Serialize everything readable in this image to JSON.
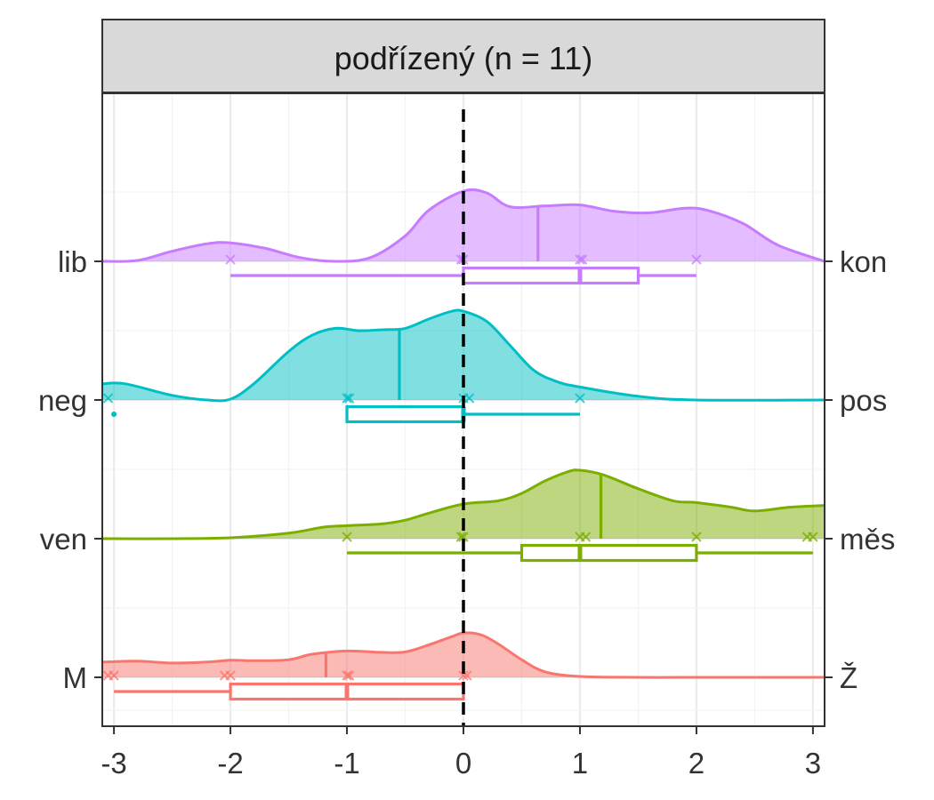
{
  "chart_data": {
    "type": "ridgeline",
    "panel_title": "podřízený (n = 11)",
    "xlim": [
      -3.1,
      3.1
    ],
    "x_ticks": [
      -3,
      -2,
      -1,
      0,
      1,
      2,
      3
    ],
    "x_tick_labels": [
      "-3",
      "-2",
      "-1",
      "0",
      "1",
      "2",
      "3"
    ],
    "reference_line_x": 0,
    "grid": true,
    "series": [
      {
        "left_label": "M",
        "right_label": "Ž",
        "color": "#F8766D",
        "density_x": [
          -3.1,
          -2.8,
          -2.5,
          -2.2,
          -2.0,
          -1.8,
          -1.5,
          -1.3,
          -1.0,
          -0.7,
          -0.5,
          -0.3,
          -0.1,
          0.0,
          0.15,
          0.3,
          0.5,
          0.7,
          1.0,
          1.5,
          2.0,
          2.5,
          3.1
        ],
        "density_y": [
          0.33,
          0.35,
          0.31,
          0.33,
          0.37,
          0.36,
          0.38,
          0.5,
          0.57,
          0.54,
          0.55,
          0.7,
          0.88,
          0.96,
          0.92,
          0.72,
          0.38,
          0.12,
          0.02,
          0.0,
          0.0,
          0.0,
          0.0
        ],
        "mean": -1.18,
        "points": [
          -3.0,
          -3.05,
          -2.0,
          -2.05,
          -1.0,
          -0.98,
          0.0,
          0.03
        ],
        "box": {
          "whisker_low": -3.0,
          "q1": -2.0,
          "median": -1.0,
          "q3": 0.0,
          "whisker_high": 0.0
        },
        "outliers": []
      },
      {
        "left_label": "ven",
        "right_label": "měs",
        "color": "#7CAE00",
        "density_x": [
          -3.1,
          -2.5,
          -2.0,
          -1.5,
          -1.2,
          -1.0,
          -0.7,
          -0.5,
          -0.3,
          0.0,
          0.3,
          0.5,
          0.7,
          0.9,
          1.0,
          1.2,
          1.5,
          1.8,
          2.0,
          2.3,
          2.5,
          2.8,
          3.1
        ],
        "density_y": [
          0.0,
          0.0,
          0.02,
          0.12,
          0.25,
          0.28,
          0.32,
          0.4,
          0.55,
          0.75,
          0.82,
          0.98,
          1.25,
          1.45,
          1.48,
          1.38,
          1.08,
          0.82,
          0.78,
          0.68,
          0.6,
          0.68,
          0.72
        ],
        "mean": 1.18,
        "points": [
          -1.0,
          0.0,
          -0.02,
          1.0,
          1.05,
          2.0,
          3.0,
          2.95
        ],
        "box": {
          "whisker_low": -1.0,
          "q1": 0.5,
          "median": 1.0,
          "q3": 2.0,
          "whisker_high": 3.0
        },
        "outliers": []
      },
      {
        "left_label": "neg",
        "right_label": "pos",
        "color": "#00BFC4",
        "density_x": [
          -3.1,
          -2.9,
          -2.5,
          -2.2,
          -2.0,
          -1.8,
          -1.5,
          -1.3,
          -1.1,
          -0.9,
          -0.7,
          -0.5,
          -0.3,
          -0.1,
          0.0,
          0.2,
          0.4,
          0.6,
          0.8,
          1.0,
          1.5,
          2.0,
          3.1
        ],
        "density_y": [
          0.35,
          0.35,
          0.1,
          0.0,
          0.02,
          0.35,
          1.05,
          1.4,
          1.55,
          1.5,
          1.52,
          1.55,
          1.75,
          1.92,
          1.92,
          1.7,
          1.18,
          0.65,
          0.4,
          0.28,
          0.08,
          0.0,
          0.0
        ],
        "mean": -0.55,
        "points": [
          -3.05,
          -1.0,
          -0.98,
          0.0,
          0.05,
          1.0
        ],
        "box": {
          "whisker_low": -1.0,
          "q1": -1.0,
          "median": 0.0,
          "q3": 0.0,
          "whisker_high": 1.0
        },
        "outliers": [
          -3.0
        ]
      },
      {
        "left_label": "lib",
        "right_label": "kon",
        "color": "#C77CFF",
        "density_x": [
          -3.1,
          -2.8,
          -2.5,
          -2.2,
          -2.0,
          -1.7,
          -1.4,
          -1.1,
          -0.8,
          -0.5,
          -0.3,
          0.0,
          0.2,
          0.4,
          0.7,
          1.0,
          1.3,
          1.6,
          1.9,
          2.1,
          2.4,
          2.7,
          3.1
        ],
        "density_y": [
          0.0,
          0.02,
          0.22,
          0.38,
          0.4,
          0.28,
          0.08,
          0.0,
          0.08,
          0.55,
          1.1,
          1.52,
          1.48,
          1.18,
          1.2,
          1.22,
          1.08,
          1.05,
          1.15,
          1.1,
          0.82,
          0.35,
          0.0
        ],
        "mean": 0.64,
        "points": [
          -2.0,
          0.0,
          -0.02,
          1.0,
          1.02,
          2.0
        ],
        "box": {
          "whisker_low": -2.0,
          "q1": 0.0,
          "median": 1.0,
          "q3": 1.5,
          "whisker_high": 2.0
        },
        "outliers": []
      }
    ]
  }
}
